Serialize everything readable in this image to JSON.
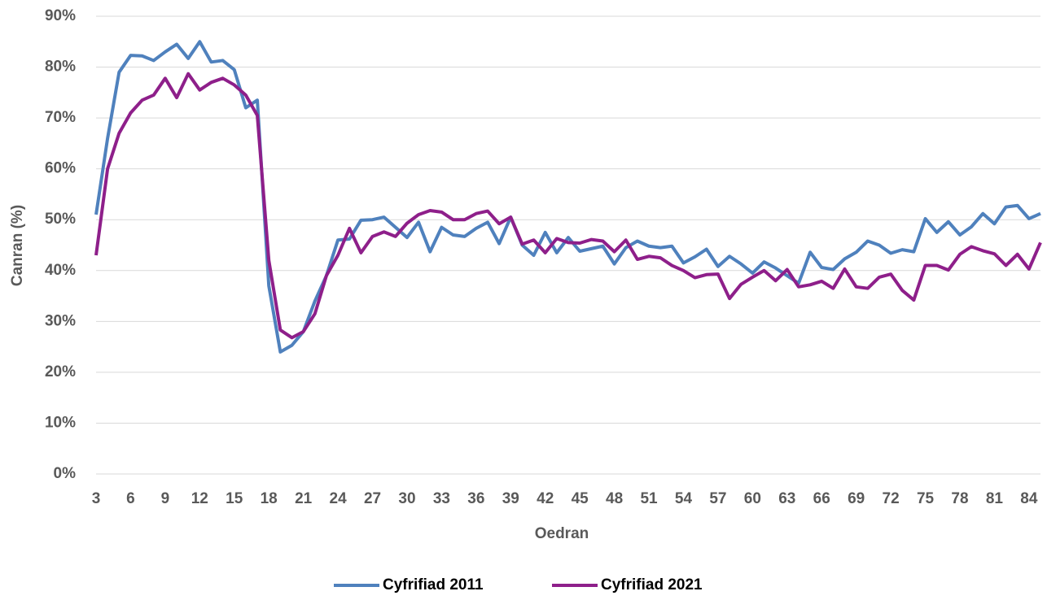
{
  "chart_data": {
    "type": "line",
    "xlabel": "Oedran",
    "ylabel": "Canran (%)",
    "x": [
      3,
      4,
      5,
      6,
      7,
      8,
      9,
      10,
      11,
      12,
      13,
      14,
      15,
      16,
      17,
      18,
      19,
      20,
      21,
      22,
      23,
      24,
      25,
      26,
      27,
      28,
      29,
      30,
      31,
      32,
      33,
      34,
      35,
      36,
      37,
      38,
      39,
      40,
      41,
      42,
      43,
      44,
      45,
      46,
      47,
      48,
      49,
      50,
      51,
      52,
      53,
      54,
      55,
      56,
      57,
      58,
      59,
      60,
      61,
      62,
      63,
      64,
      65,
      66,
      67,
      68,
      69,
      70,
      71,
      72,
      73,
      74,
      75,
      76,
      77,
      78,
      79,
      80,
      81,
      82,
      83,
      84,
      85
    ],
    "series": [
      {
        "name": "Cyfrifiad 2011",
        "color": "#4f81bd",
        "values": [
          51,
          66,
          79,
          82.3,
          82.2,
          81.3,
          83,
          84.5,
          81.7,
          85,
          81,
          81.3,
          79.5,
          72,
          73.5,
          37,
          24,
          25.3,
          28,
          34,
          39,
          46,
          46.2,
          49.9,
          50,
          50.5,
          48.5,
          46.5,
          49.5,
          43.7,
          48.5,
          47,
          46.7,
          48.3,
          49.5,
          45.3,
          50.5,
          45,
          43,
          47.5,
          43.5,
          46.5,
          43.8,
          44.3,
          44.8,
          41.3,
          44.5,
          45.8,
          44.8,
          44.5,
          44.8,
          41.5,
          42.7,
          44.2,
          40.8,
          42.8,
          41.3,
          39.5,
          41.7,
          40.5,
          39,
          37.5,
          43.6,
          40.6,
          40.2,
          42.3,
          43.6,
          45.8,
          45,
          43.4,
          44.1,
          43.7,
          50.2,
          47.5,
          49.6,
          47,
          48.6,
          51.2,
          49.2,
          52.5,
          52.8,
          50.2,
          51.2
        ]
      },
      {
        "name": "Cyfrifiad 2021",
        "color": "#8e1f8a",
        "values": [
          43,
          60,
          67,
          71,
          73.5,
          74.5,
          77.8,
          74,
          78.7,
          75.5,
          77,
          77.8,
          76.5,
          74.5,
          70.5,
          42,
          28.3,
          26.8,
          28,
          31.5,
          39,
          43,
          48.3,
          43.5,
          46.7,
          47.6,
          46.7,
          49.3,
          51,
          51.8,
          51.5,
          50,
          50,
          51.2,
          51.7,
          49.2,
          50.5,
          45.2,
          46,
          43.5,
          46.3,
          45.5,
          45.4,
          46.1,
          45.8,
          43.7,
          46,
          42.2,
          42.8,
          42.5,
          41,
          40,
          38.6,
          39.2,
          39.3,
          34.5,
          37.3,
          38.7,
          40,
          38,
          40.2,
          36.8,
          37.2,
          37.9,
          36.5,
          40.3,
          36.8,
          36.5,
          38.7,
          39.3,
          36.1,
          34.2,
          41,
          41,
          40.1,
          43.2,
          44.7,
          43.9,
          43.3,
          41,
          43.2,
          40.3,
          45.5
        ]
      }
    ],
    "xlim": [
      3,
      85
    ],
    "xticks": [
      3,
      6,
      9,
      12,
      15,
      18,
      21,
      24,
      27,
      30,
      33,
      36,
      39,
      42,
      45,
      48,
      51,
      54,
      57,
      60,
      63,
      66,
      69,
      72,
      75,
      78,
      81,
      84
    ],
    "ylim": [
      0,
      90
    ],
    "yticks": [
      {
        "value": 0,
        "label": "0%"
      },
      {
        "value": 10,
        "label": "10%"
      },
      {
        "value": 20,
        "label": "20%"
      },
      {
        "value": 30,
        "label": "30%"
      },
      {
        "value": 40,
        "label": "40%"
      },
      {
        "value": 50,
        "label": "50%"
      },
      {
        "value": 60,
        "label": "60%"
      },
      {
        "value": 70,
        "label": "70%"
      },
      {
        "value": 80,
        "label": "80%"
      },
      {
        "value": 90,
        "label": "90%"
      }
    ],
    "grid": true,
    "legend": "bottom"
  }
}
